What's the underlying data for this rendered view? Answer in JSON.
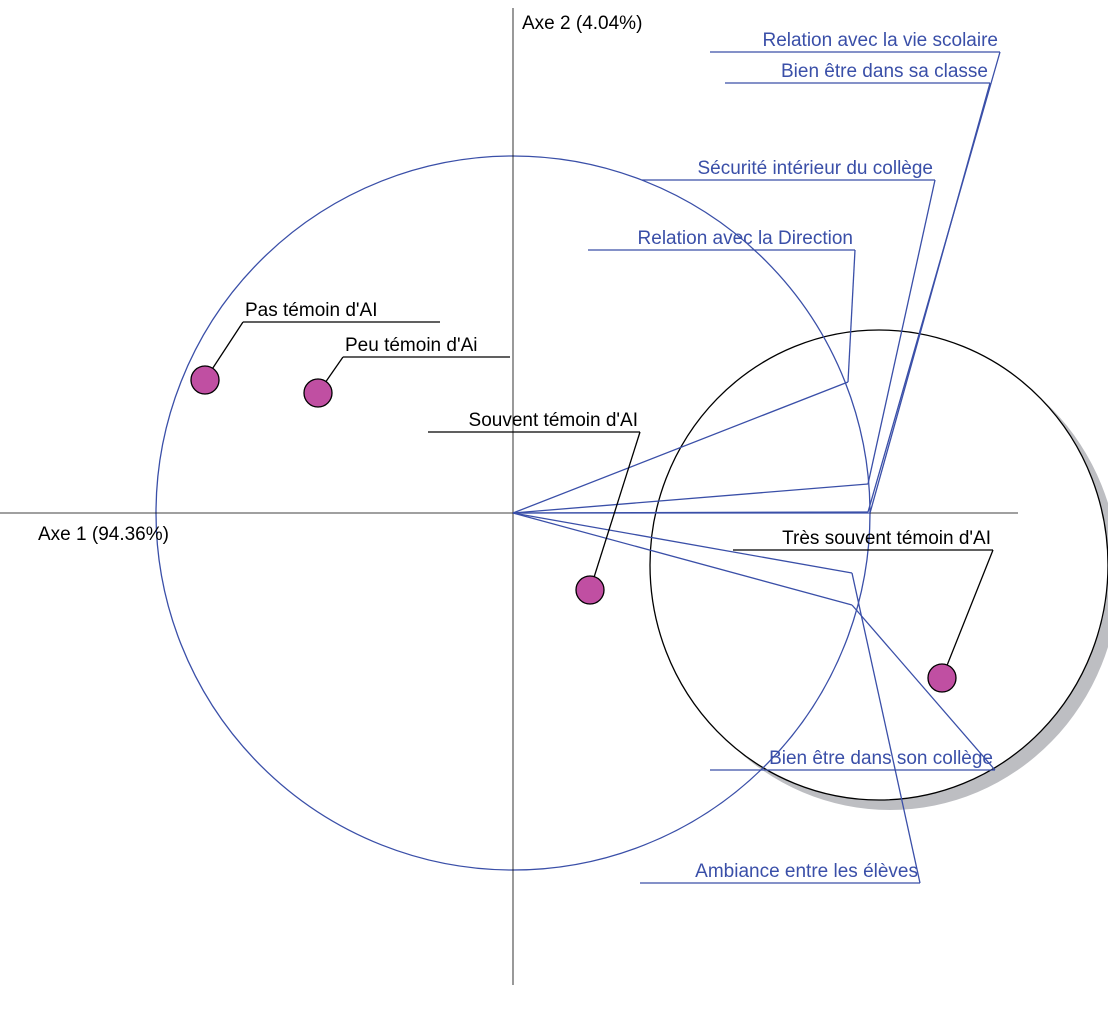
{
  "axes": {
    "x_label": "Axe 1 (94.36%)",
    "y_label": "Axe 2 (4.04%)"
  },
  "variables": [
    {
      "label": "Relation avec la vie scolaire"
    },
    {
      "label": "Bien être dans sa classe"
    },
    {
      "label": "Sécurité intérieur du collège"
    },
    {
      "label": "Relation avec la Direction"
    },
    {
      "label": "Ambiance entre les élèves"
    },
    {
      "label": "Bien être dans son collège"
    }
  ],
  "individuals": [
    {
      "label": "Pas témoin d'AI"
    },
    {
      "label": "Peu témoin d'Ai"
    },
    {
      "label": "Souvent témoin d'AI"
    },
    {
      "label": "Très souvent témoin d'AI"
    }
  ]
}
